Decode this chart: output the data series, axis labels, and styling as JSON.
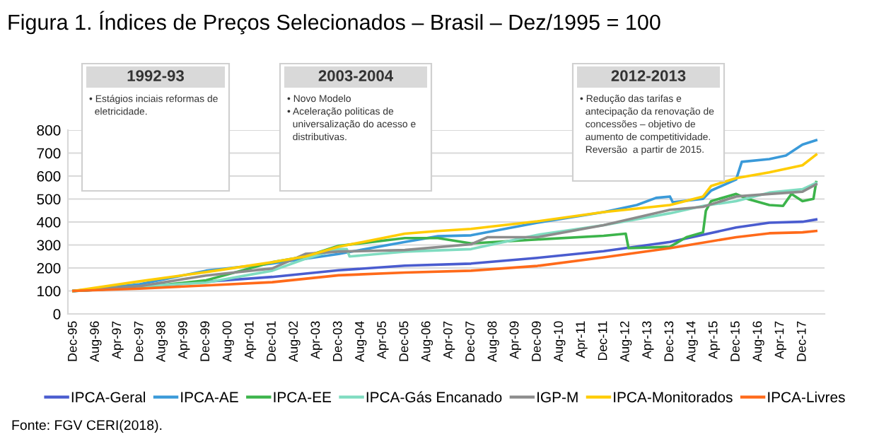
{
  "chart_data": {
    "type": "line",
    "title": "Figura 1. Índices de Preços Selecionados – Brasil – Dez/1995 = 100",
    "annotations": [
      "1992-93\n• Estágios inciais reformas de\n  eletricidade.",
      "2003-2004\n• Novo Modelo\n• Aceleração politicas de\n  universalização do acesso e\n  distributivas.",
      "2012-2013\n• Redução das tarifas e\n  antecipação da renovação de\n  concessões – objetivo de\n  aumento de competitividade.\n  Reversão  a partir de 2015.",
      "Fonte: FGV CERI(2018)."
    ],
    "xlim": [
      "1995-10",
      "2018-08"
    ],
    "ylim": [
      0,
      800
    ],
    "yticks": [
      0,
      100,
      200,
      300,
      400,
      500,
      600,
      700,
      800
    ],
    "xticks": [
      {
        "value": "1995-12",
        "label": "Dec-95"
      },
      {
        "value": "1996-08",
        "label": "Aug-96"
      },
      {
        "value": "1997-04",
        "label": "Apr-97"
      },
      {
        "value": "1997-12",
        "label": "Dec-97"
      },
      {
        "value": "1998-08",
        "label": "Aug-98"
      },
      {
        "value": "1999-04",
        "label": "Apr-99"
      },
      {
        "value": "1999-12",
        "label": "Dec-99"
      },
      {
        "value": "2000-08",
        "label": "Aug-00"
      },
      {
        "value": "2001-04",
        "label": "Apr-01"
      },
      {
        "value": "2001-12",
        "label": "Dec-01"
      },
      {
        "value": "2002-08",
        "label": "Aug-02"
      },
      {
        "value": "2003-04",
        "label": "Apr-03"
      },
      {
        "value": "2003-12",
        "label": "Dec-03"
      },
      {
        "value": "2004-08",
        "label": "Aug-04"
      },
      {
        "value": "2005-04",
        "label": "Apr-05"
      },
      {
        "value": "2005-12",
        "label": "Dec-05"
      },
      {
        "value": "2006-08",
        "label": "Aug-06"
      },
      {
        "value": "2007-04",
        "label": "Apr-07"
      },
      {
        "value": "2007-12",
        "label": "Dec-07"
      },
      {
        "value": "2008-08",
        "label": "Aug-08"
      },
      {
        "value": "2009-04",
        "label": "Apr-09"
      },
      {
        "value": "2009-12",
        "label": "Dec-09"
      },
      {
        "value": "2010-08",
        "label": "Aug-10"
      },
      {
        "value": "2011-04",
        "label": "Apr-11"
      },
      {
        "value": "2011-12",
        "label": "Dec-11"
      },
      {
        "value": "2012-08",
        "label": "Aug-12"
      },
      {
        "value": "2013-04",
        "label": "Apr-13"
      },
      {
        "value": "2013-12",
        "label": "Dec-13"
      },
      {
        "value": "2014-08",
        "label": "Aug-14"
      },
      {
        "value": "2015-04",
        "label": "Apr-15"
      },
      {
        "value": "2015-12",
        "label": "Dec-15"
      },
      {
        "value": "2016-08",
        "label": "Aug-16"
      },
      {
        "value": "2017-04",
        "label": "Apr-17"
      },
      {
        "value": "2017-12",
        "label": "Dec-17"
      }
    ],
    "grid": "y",
    "legend": "bottom",
    "series": [
      {
        "name": "IPCA-Geral",
        "color": "#4a5ccf",
        "x": [
          "1995-12",
          "1997-12",
          "1999-12",
          "2001-12",
          "2003-12",
          "2005-12",
          "2007-12",
          "2009-12",
          "2011-12",
          "2013-12",
          "2015-12",
          "2016-12",
          "2017-12",
          "2018-05"
        ],
        "values": [
          100,
          115,
          140,
          161,
          190,
          210,
          219,
          244,
          273,
          313,
          376,
          397,
          401,
          411
        ]
      },
      {
        "name": "IPCA-AE",
        "color": "#3a9ad9",
        "x": [
          "1995-12",
          "1997-12",
          "1999-12",
          "2001-12",
          "2003-12",
          "2005-12",
          "2006-12",
          "2007-12",
          "2009-12",
          "2011-12",
          "2012-12",
          "2013-07",
          "2013-12",
          "2014-01",
          "2014-12",
          "2015-03",
          "2015-12",
          "2016-02",
          "2016-12",
          "2017-06",
          "2017-12",
          "2018-05"
        ],
        "values": [
          100,
          129,
          188,
          219,
          261,
          313,
          338,
          342,
          397,
          443,
          474,
          505,
          511,
          486,
          501,
          537,
          585,
          662,
          674,
          689,
          737,
          756
        ]
      },
      {
        "name": "IPCA-EE",
        "color": "#3cb44b",
        "x": [
          "1995-12",
          "1997-12",
          "1999-12",
          "2001-12",
          "2002-12",
          "2003-12",
          "2005-12",
          "2006-12",
          "2007-12",
          "2009-12",
          "2011-12",
          "2012-08",
          "2012-09",
          "2013-12",
          "2014-06",
          "2014-12",
          "2015-01",
          "2015-03",
          "2015-12",
          "2016-04",
          "2016-12",
          "2017-05",
          "2017-08",
          "2017-12",
          "2018-04",
          "2018-05"
        ],
        "values": [
          100,
          115,
          146,
          225,
          250,
          296,
          330,
          330,
          307,
          324,
          340,
          349,
          286,
          292,
          334,
          355,
          449,
          491,
          522,
          501,
          474,
          470,
          522,
          491,
          501,
          574
        ]
      },
      {
        "name": "IPCA-Gás Encanado",
        "color": "#7fdcc0",
        "x": [
          "1995-12",
          "1997-12",
          "1999-12",
          "2001-12",
          "2002-12",
          "2003-12",
          "2004-03",
          "2004-04",
          "2005-12",
          "2007-12",
          "2009-12",
          "2011-12",
          "2013-12",
          "2014-12",
          "2015-12",
          "2016-12",
          "2017-12",
          "2018-05"
        ],
        "values": [
          100,
          120,
          136,
          188,
          240,
          282,
          282,
          250,
          271,
          282,
          344,
          386,
          438,
          470,
          491,
          528,
          543,
          570
        ]
      },
      {
        "name": "IGP-M",
        "color": "#8c8c8c",
        "x": [
          "1995-12",
          "1997-12",
          "1999-12",
          "2001-12",
          "2002-12",
          "2003-12",
          "2005-12",
          "2007-12",
          "2008-06",
          "2009-12",
          "2011-12",
          "2013-12",
          "2014-12",
          "2015-12",
          "2016-12",
          "2017-12",
          "2018-05"
        ],
        "values": [
          100,
          121,
          167,
          198,
          261,
          271,
          278,
          303,
          334,
          334,
          386,
          453,
          466,
          511,
          522,
          532,
          564
        ]
      },
      {
        "name": "IPCA-Monitorados",
        "color": "#ffcc00",
        "x": [
          "1995-12",
          "1997-12",
          "1999-12",
          "2001-12",
          "2002-12",
          "2003-12",
          "2005-12",
          "2006-12",
          "2007-12",
          "2009-12",
          "2011-12",
          "2013-12",
          "2014-12",
          "2015-03",
          "2015-12",
          "2016-12",
          "2017-12",
          "2018-05"
        ],
        "values": [
          100,
          142,
          182,
          225,
          250,
          292,
          349,
          361,
          370,
          403,
          443,
          474,
          511,
          557,
          591,
          616,
          647,
          693
        ]
      },
      {
        "name": "IPCA-Livres",
        "color": "#ff6a1a",
        "x": [
          "1995-12",
          "1997-12",
          "1999-12",
          "2001-12",
          "2003-12",
          "2005-12",
          "2007-12",
          "2009-12",
          "2011-12",
          "2013-12",
          "2015-12",
          "2016-12",
          "2017-12",
          "2018-05"
        ],
        "values": [
          100,
          110,
          124,
          138,
          168,
          180,
          188,
          209,
          246,
          286,
          334,
          351,
          355,
          361
        ]
      }
    ]
  }
}
